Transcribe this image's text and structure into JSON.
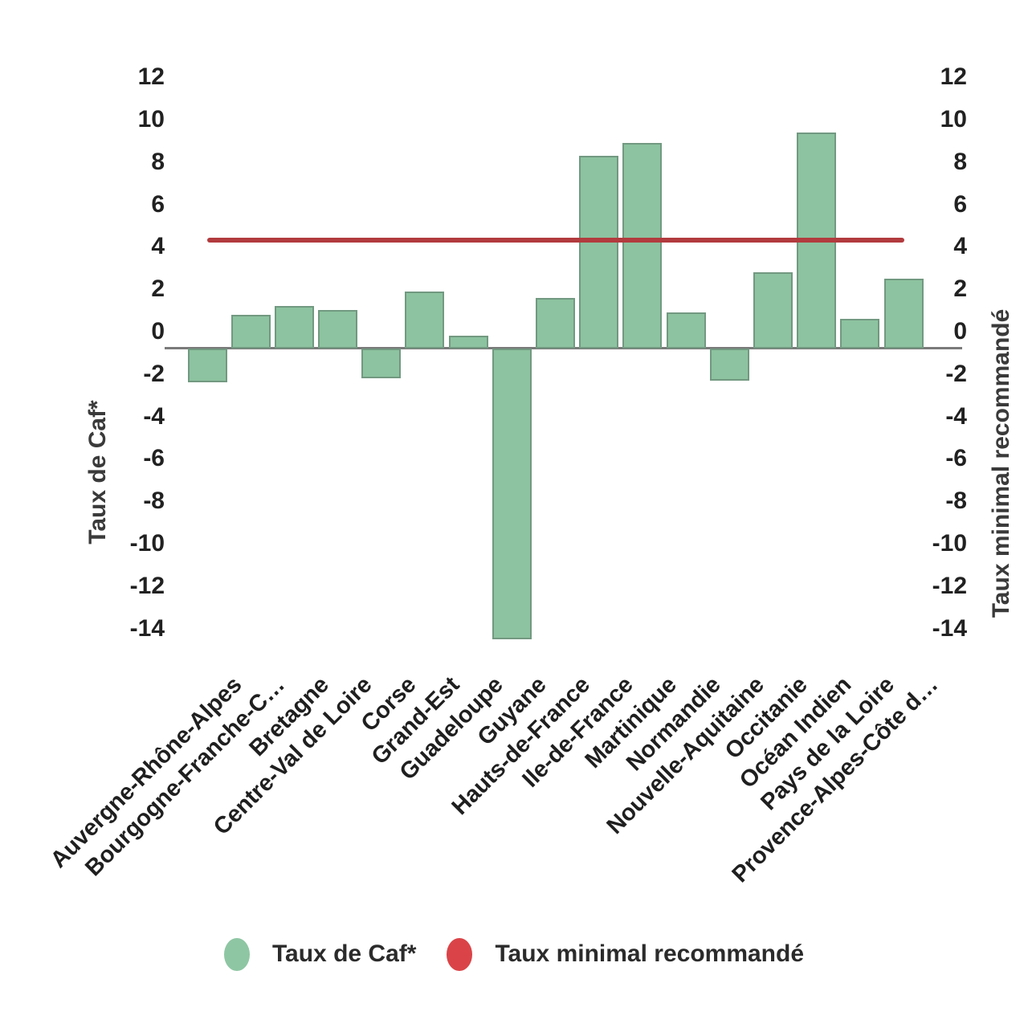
{
  "chart_data": {
    "type": "bar",
    "title": "",
    "categories": [
      "Auvergne-Rhône-Alpes",
      "Bourgogne-Franche-C…",
      "Bretagne",
      "Centre-Val de Loire",
      "Corse",
      "Grand-Est",
      "Guadeloupe",
      "Guyane",
      "Hauts-de-France",
      "Ile-de-France",
      "Martinique",
      "Normandie",
      "Nouvelle-Aquitaine",
      "Occitanie",
      "Océan Indien",
      "Pays de la Loire",
      "Provence-Alpes-Côte d…"
    ],
    "series": [
      {
        "name": "Taux de Caf*",
        "type": "bar",
        "color": "#8dc3a0",
        "values": [
          -1.6,
          1.6,
          2.0,
          1.8,
          -1.4,
          2.7,
          0.6,
          -13.7,
          2.4,
          9.1,
          9.7,
          1.7,
          -1.5,
          3.6,
          10.2,
          1.4,
          3.3
        ]
      },
      {
        "name": "Taux minimal recommandé",
        "type": "line",
        "color": "#b23b3e",
        "value": 5.1
      }
    ],
    "y_axis_left": {
      "title": "Taux de Caf*",
      "ticks": [
        12,
        10,
        8,
        6,
        4,
        2,
        0,
        -2,
        -4,
        -6,
        -8,
        -10,
        -12,
        -14
      ]
    },
    "y_axis_right": {
      "title": "Taux minimal recommandé",
      "ticks": [
        12,
        10,
        8,
        6,
        4,
        2,
        0,
        -2,
        -4,
        -6,
        -8,
        -10,
        -12,
        -14
      ]
    },
    "ylim": [
      -14.5,
      12.5
    ],
    "grid": false,
    "legend_position": "bottom"
  },
  "legend": {
    "items": [
      {
        "label": "Taux de Caf*",
        "color": "#8ec6a3"
      },
      {
        "label": "Taux minimal recommandé",
        "color": "#da4448"
      }
    ]
  }
}
